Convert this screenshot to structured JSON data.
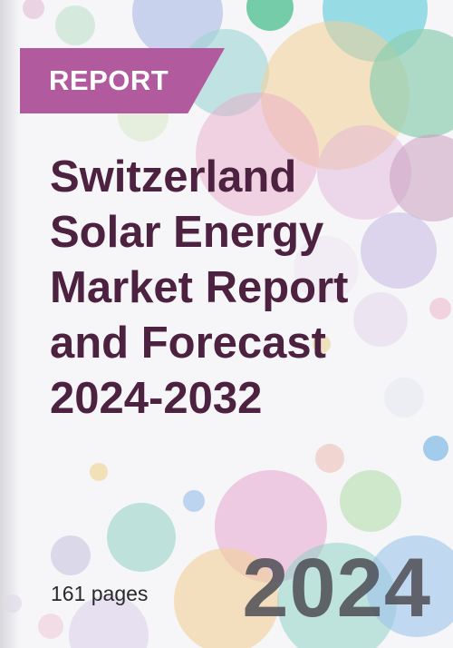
{
  "badge": {
    "label": "REPORT"
  },
  "title": {
    "lines": [
      "Switzerland",
      "Solar Energy",
      "Market Report",
      "and Forecast",
      "2024-2032"
    ]
  },
  "pages": "161 pages",
  "year": "2024",
  "colors": {
    "badge": "#b15a9e",
    "title": "#4c2240",
    "year": "#4f4f56",
    "background": "#f6f5f7"
  }
}
